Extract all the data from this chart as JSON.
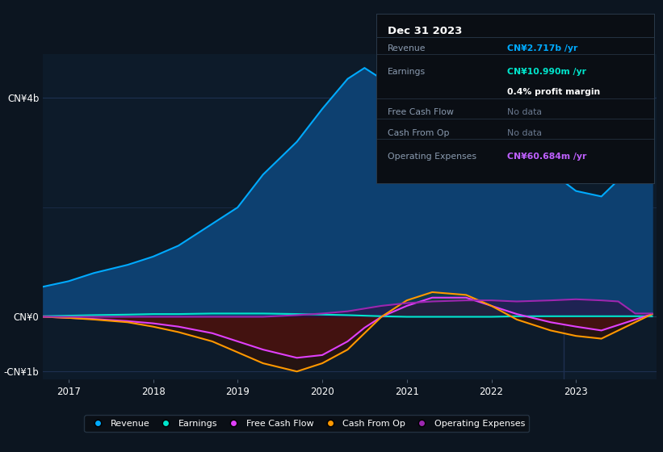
{
  "bg_color": "#0c1520",
  "plot_bg_color": "#0d1b2a",
  "text_color": "#ffffff",
  "dim_text_color": "#8a9bb0",
  "revenue_fill": "#0d4070",
  "revenue_line": "#00aaff",
  "earnings_line": "#00e5cc",
  "fcf_line": "#e040fb",
  "cashop_line": "#ff9800",
  "opex_line": "#9c27b0",
  "years": [
    2016.7,
    2017.0,
    2017.3,
    2017.7,
    2018.0,
    2018.3,
    2018.7,
    2019.0,
    2019.3,
    2019.7,
    2020.0,
    2020.3,
    2020.5,
    2020.7,
    2021.0,
    2021.3,
    2021.7,
    2022.0,
    2022.3,
    2022.7,
    2023.0,
    2023.3,
    2023.5,
    2023.7,
    2023.9
  ],
  "revenue": [
    0.55,
    0.65,
    0.8,
    0.95,
    1.1,
    1.3,
    1.7,
    2.0,
    2.6,
    3.2,
    3.8,
    4.35,
    4.55,
    4.35,
    4.0,
    3.7,
    3.6,
    3.55,
    3.2,
    2.65,
    2.3,
    2.2,
    2.5,
    3.2,
    4.0
  ],
  "earnings": [
    0.01,
    0.02,
    0.03,
    0.04,
    0.05,
    0.05,
    0.06,
    0.06,
    0.06,
    0.05,
    0.04,
    0.03,
    0.02,
    0.01,
    0.0,
    0.0,
    0.0,
    0.0,
    0.01,
    0.01,
    0.01,
    0.01,
    0.01,
    0.01,
    0.01
  ],
  "fcf": [
    0.0,
    -0.02,
    -0.04,
    -0.08,
    -0.12,
    -0.18,
    -0.3,
    -0.45,
    -0.6,
    -0.75,
    -0.7,
    -0.45,
    -0.2,
    0.0,
    0.2,
    0.35,
    0.35,
    0.2,
    0.05,
    -0.1,
    -0.18,
    -0.25,
    -0.15,
    -0.05,
    0.05
  ],
  "cashop": [
    0.0,
    -0.02,
    -0.05,
    -0.1,
    -0.18,
    -0.28,
    -0.45,
    -0.65,
    -0.85,
    -1.0,
    -0.85,
    -0.6,
    -0.3,
    0.0,
    0.3,
    0.45,
    0.4,
    0.2,
    -0.05,
    -0.25,
    -0.35,
    -0.4,
    -0.25,
    -0.1,
    0.05
  ],
  "opex": [
    0.0,
    0.0,
    0.0,
    0.0,
    0.0,
    0.0,
    0.0,
    0.0,
    0.0,
    0.03,
    0.06,
    0.1,
    0.15,
    0.2,
    0.25,
    0.28,
    0.3,
    0.3,
    0.28,
    0.3,
    0.32,
    0.3,
    0.28,
    0.06,
    0.06
  ],
  "separator_x": 2022.85,
  "xlim_left": 2016.7,
  "xlim_right": 2023.95,
  "ylim_bottom": -1.15,
  "ylim_top": 4.8,
  "ytick_vals": [
    -1.0,
    0.0,
    4.0
  ],
  "ytick_labels": [
    "-CN¥1b",
    "CN¥0",
    "CN¥4b"
  ],
  "xticks": [
    2017,
    2018,
    2019,
    2020,
    2021,
    2022,
    2023
  ],
  "info_box": {
    "title": "Dec 31 2023",
    "rows": [
      {
        "label": "Revenue",
        "value": "CN¥2.717b /yr",
        "value_color": "#00aaff",
        "bold_value": true,
        "has_sep_below": true
      },
      {
        "label": "Earnings",
        "value": "CN¥10.990m /yr",
        "value_color": "#00e5cc",
        "bold_value": true,
        "has_sep_below": false
      },
      {
        "label": "",
        "value": "0.4% profit margin",
        "value_color": "#ffffff",
        "bold_value": true,
        "has_sep_below": true
      },
      {
        "label": "Free Cash Flow",
        "value": "No data",
        "value_color": "#6b7a90",
        "bold_value": false,
        "has_sep_below": true
      },
      {
        "label": "Cash From Op",
        "value": "No data",
        "value_color": "#6b7a90",
        "bold_value": false,
        "has_sep_below": true
      },
      {
        "label": "Operating Expenses",
        "value": "CN¥60.684m /yr",
        "value_color": "#bf60ff",
        "bold_value": true,
        "has_sep_below": false
      }
    ]
  },
  "legend": [
    {
      "label": "Revenue",
      "color": "#00aaff"
    },
    {
      "label": "Earnings",
      "color": "#00e5cc"
    },
    {
      "label": "Free Cash Flow",
      "color": "#e040fb"
    },
    {
      "label": "Cash From Op",
      "color": "#ff9800"
    },
    {
      "label": "Operating Expenses",
      "color": "#9c27b0"
    }
  ]
}
